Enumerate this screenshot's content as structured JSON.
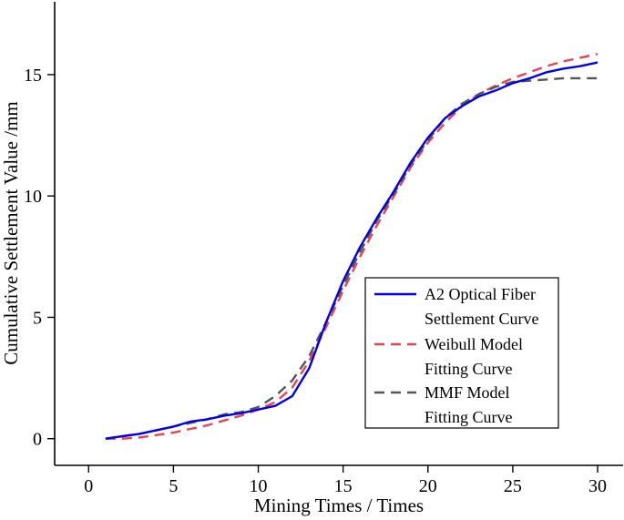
{
  "chart_data": {
    "type": "line",
    "title": "",
    "xlabel": "Mining Times / Times",
    "ylabel": "Cumulative Settlement Value /mm",
    "xlim": [
      -2,
      31.5
    ],
    "ylim": [
      -1.1,
      18
    ],
    "xticks": [
      0,
      5,
      10,
      15,
      20,
      25,
      30
    ],
    "yticks": [
      0,
      5,
      10,
      15
    ],
    "legend_position": "bottom-right",
    "series": [
      {
        "name": "A2 Optical Fiber Settlement Curve",
        "legend_lines": [
          "A2 Optical Fiber",
          "Settlement Curve"
        ],
        "color": "#0000ee",
        "style": "solid",
        "x": [
          1,
          2,
          3,
          4,
          5,
          6,
          7,
          8,
          9,
          10,
          11,
          12,
          13,
          14,
          15,
          16,
          17,
          18,
          19,
          20,
          21,
          22,
          23,
          24,
          25,
          26,
          27,
          28,
          29,
          30
        ],
        "y": [
          0.0,
          0.1,
          0.2,
          0.35,
          0.5,
          0.7,
          0.8,
          0.95,
          1.05,
          1.2,
          1.35,
          1.75,
          2.9,
          4.8,
          6.5,
          7.9,
          9.1,
          10.2,
          11.4,
          12.4,
          13.2,
          13.7,
          14.1,
          14.35,
          14.65,
          14.85,
          15.1,
          15.25,
          15.35,
          15.5
        ]
      },
      {
        "name": "Weibull Model Fitting Curve",
        "legend_lines": [
          "Weibull Model",
          "Fitting Curve"
        ],
        "color": "#e8434e",
        "style": "dashed",
        "x": [
          1,
          2,
          3,
          4,
          5,
          6,
          7,
          8,
          9,
          10,
          11,
          12,
          13,
          14,
          15,
          16,
          17,
          18,
          19,
          20,
          21,
          22,
          23,
          24,
          25,
          26,
          27,
          28,
          29,
          30
        ],
        "y": [
          0.0,
          0.0,
          0.05,
          0.15,
          0.25,
          0.4,
          0.55,
          0.75,
          0.95,
          1.2,
          1.5,
          2.1,
          3.2,
          4.6,
          6.1,
          7.5,
          8.8,
          10.0,
          11.2,
          12.2,
          13.0,
          13.7,
          14.2,
          14.55,
          14.85,
          15.1,
          15.35,
          15.55,
          15.7,
          15.85
        ]
      },
      {
        "name": "MMF Model Fitting Curve",
        "legend_lines": [
          "MMF Model",
          "Fitting Curve"
        ],
        "color": "#555555",
        "style": "dashed",
        "x": [
          1,
          2,
          3,
          4,
          5,
          6,
          7,
          8,
          9,
          10,
          11,
          12,
          13,
          14,
          15,
          16,
          17,
          18,
          19,
          20,
          21,
          22,
          23,
          24,
          25,
          26,
          27,
          28,
          29,
          30
        ],
        "y": [
          0.0,
          0.1,
          0.2,
          0.35,
          0.5,
          0.65,
          0.8,
          1.0,
          1.1,
          1.3,
          1.75,
          2.4,
          3.4,
          4.8,
          6.3,
          7.7,
          9.0,
          10.1,
          11.3,
          12.3,
          13.2,
          13.8,
          14.2,
          14.5,
          14.7,
          14.75,
          14.8,
          14.85,
          14.85,
          14.85
        ]
      }
    ]
  }
}
